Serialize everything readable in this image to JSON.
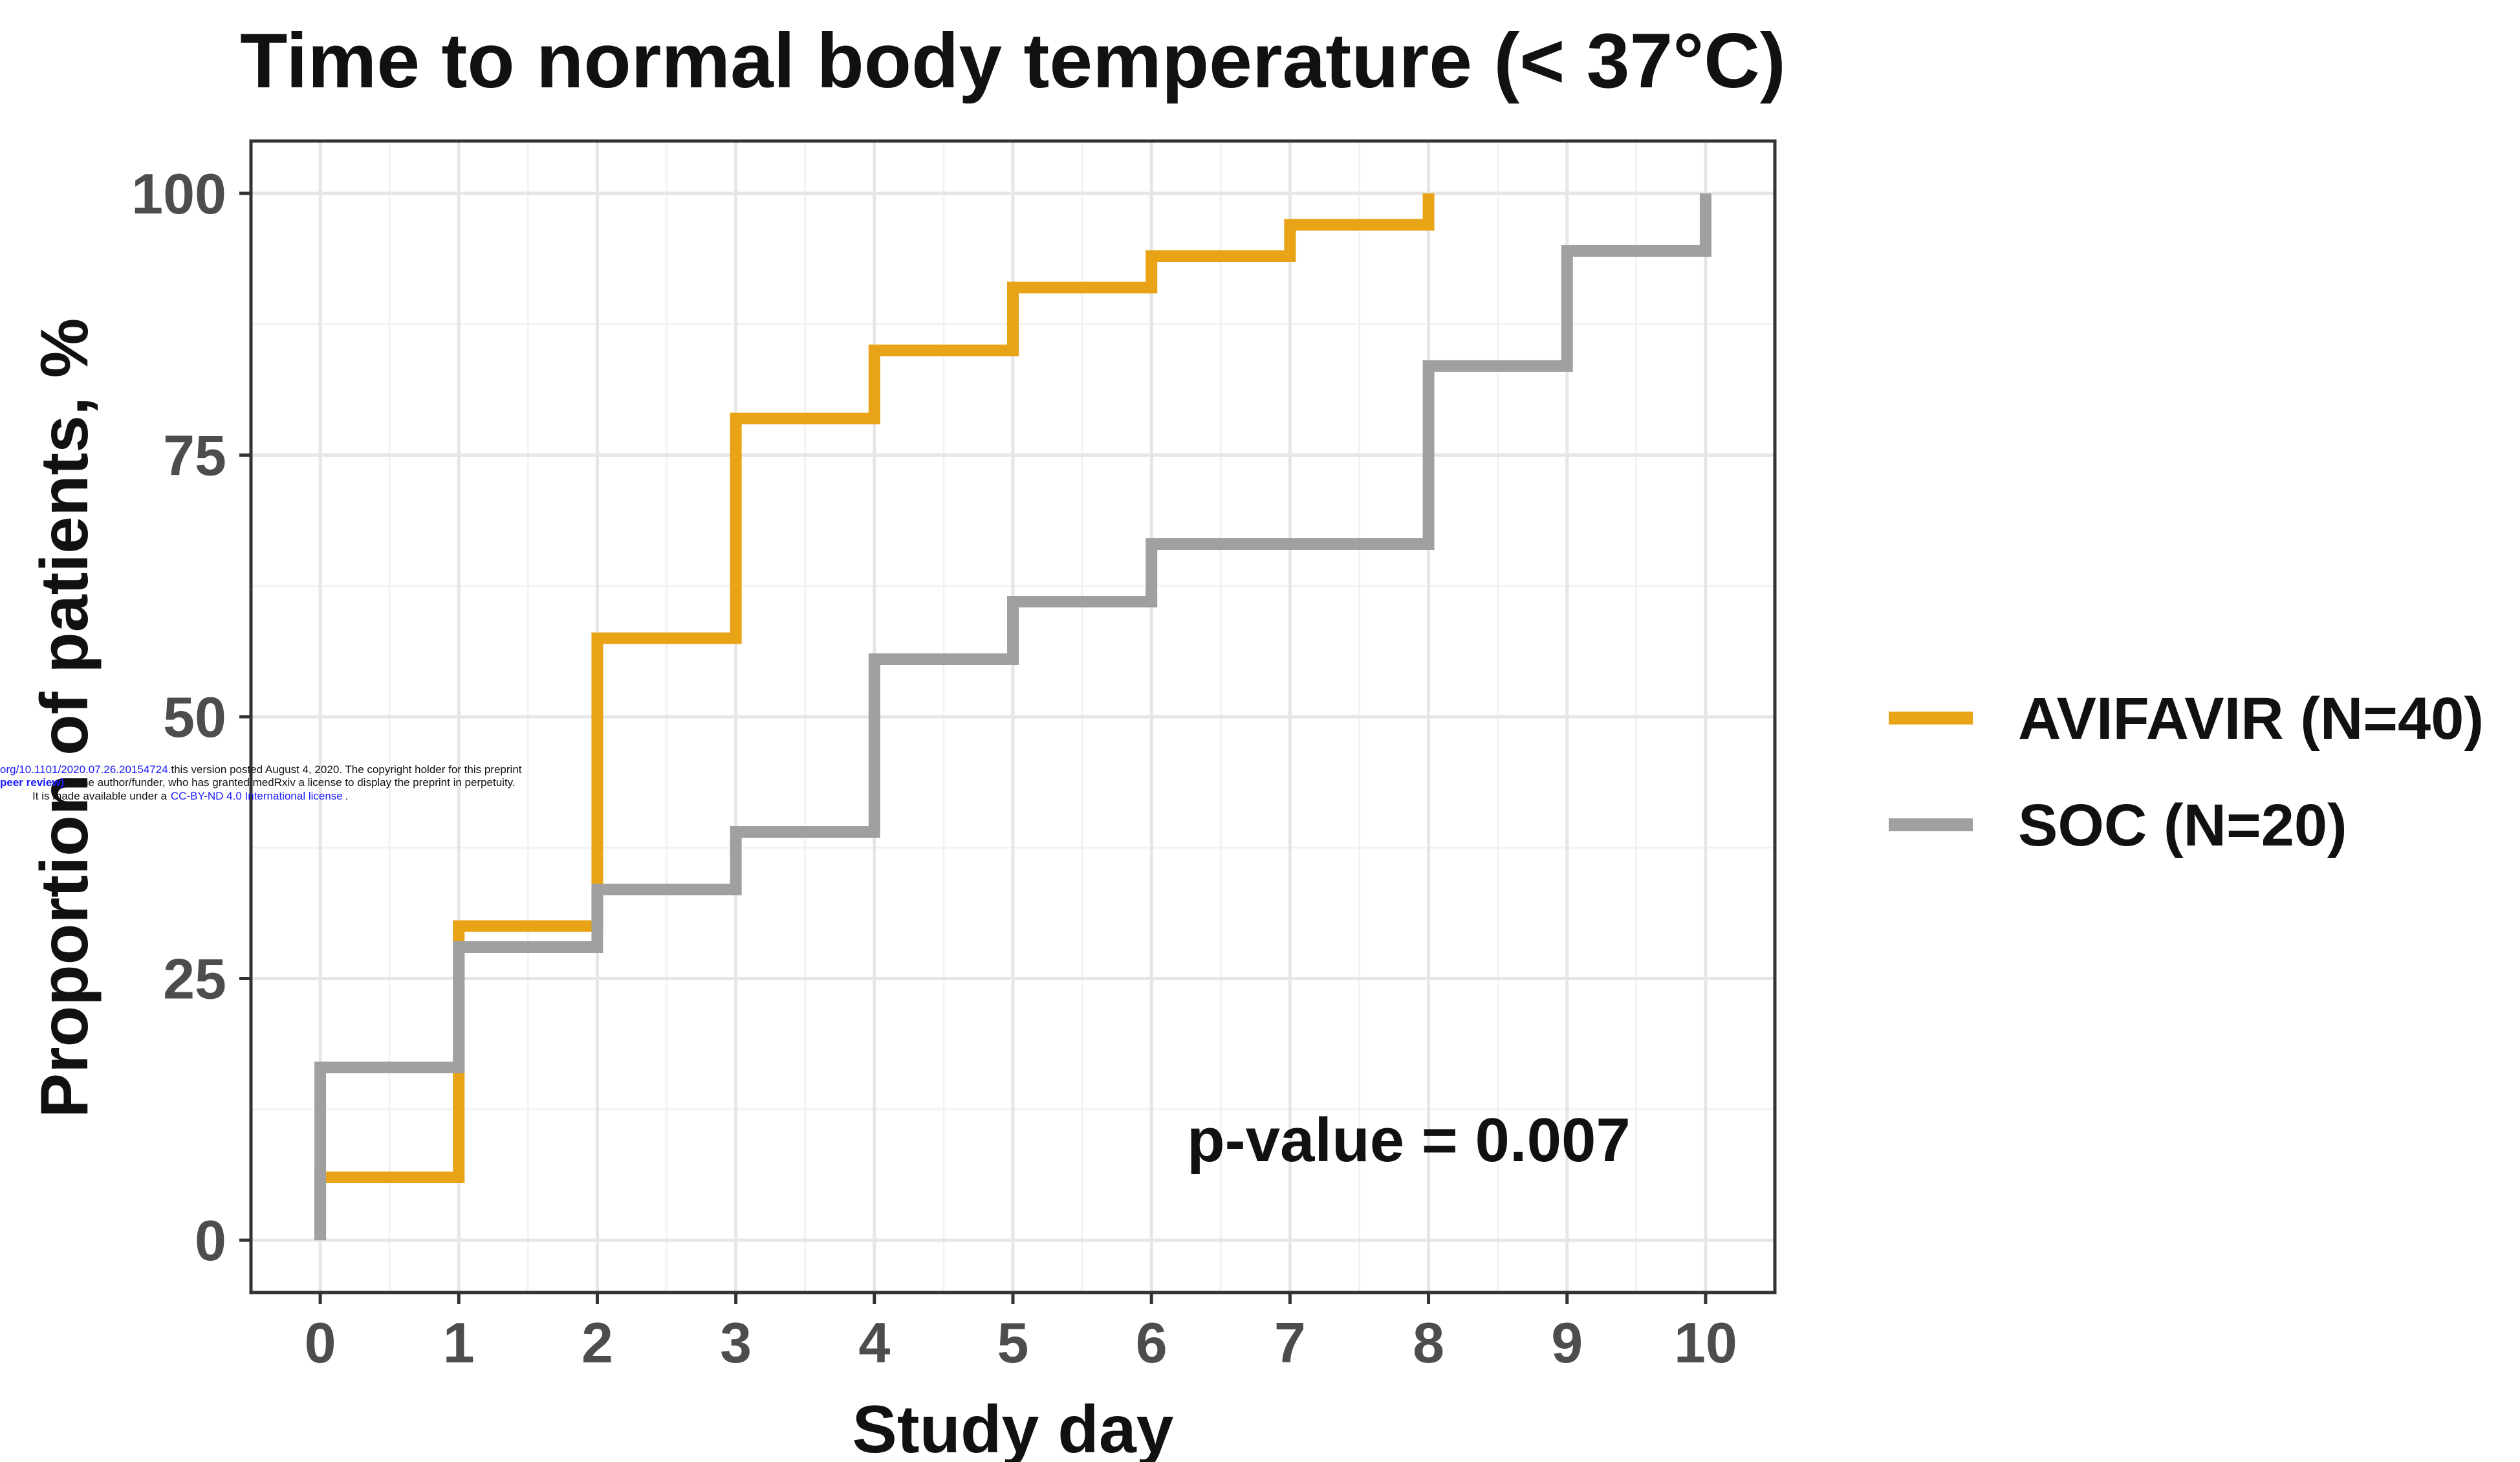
{
  "chart_data": {
    "type": "line",
    "step": true,
    "title": "Time to normal body temperature (< 37°C)",
    "xlabel": "Study day",
    "ylabel": "Proportion of patients, %",
    "xlim": [
      -0.5,
      10.5
    ],
    "ylim": [
      -5,
      105
    ],
    "x_ticks": [
      0,
      1,
      2,
      3,
      4,
      5,
      6,
      7,
      8,
      9,
      10
    ],
    "y_ticks": [
      0,
      25,
      50,
      75,
      100
    ],
    "grid": true,
    "legend_position": "right",
    "series": [
      {
        "name": "AVIFAVIR (N=40)",
        "color": "#E8A317",
        "x": [
          0,
          1,
          2,
          3,
          4,
          5,
          6,
          7,
          8
        ],
        "y": [
          6,
          30,
          57.5,
          78.5,
          85,
          91,
          94,
          97,
          100
        ]
      },
      {
        "name": "SOC (N=20)",
        "color": "#A0A0A0",
        "x": [
          0,
          1,
          2,
          3,
          4,
          5,
          6,
          8,
          9,
          10
        ],
        "y": [
          16.5,
          28,
          33.5,
          39,
          55.5,
          61,
          66.5,
          83.5,
          94.5,
          100
        ]
      }
    ],
    "annotations": [
      "p-value = 0.007"
    ]
  },
  "watermark": {
    "line1_link": "org/10.1101/2020.07.26.20154724.",
    "line1_rest": "this version posted August 4, 2020. The copyright holder for this preprint",
    "line2_link": "peer review)",
    "line2_rest": "is the author/funder, who has granted medRxiv a license to display the preprint in perpetuity.",
    "line3_start": "It is made available under a",
    "line3_link": "CC-BY-ND 4.0 International license",
    "line3_end": "."
  }
}
